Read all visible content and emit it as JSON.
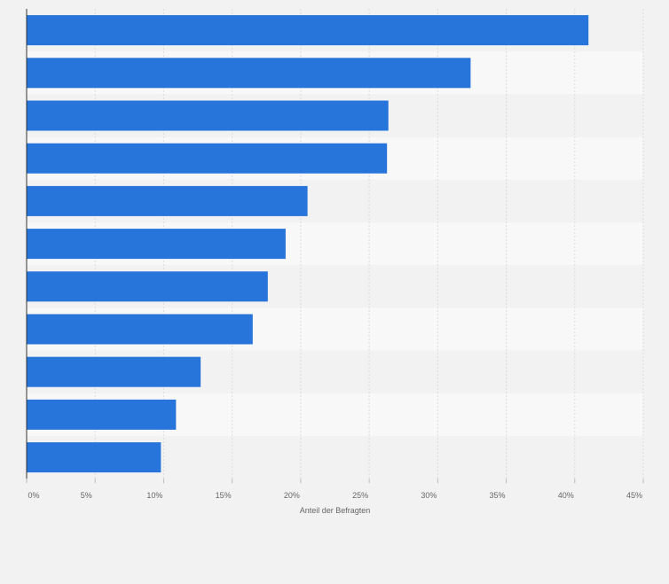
{
  "chart_data": {
    "type": "bar",
    "orientation": "horizontal",
    "title": "",
    "xlabel": "Anteil der Befragten",
    "ylabel": "",
    "categories": [
      "",
      "",
      "",
      "",
      "",
      "",
      "",
      "",
      "",
      "",
      ""
    ],
    "values": [
      41,
      32.4,
      26.4,
      26.3,
      20.5,
      18.9,
      17.6,
      16.5,
      12.7,
      10.9,
      9.8
    ],
    "xlim": [
      0,
      45
    ],
    "x_ticks": [
      0,
      5,
      10,
      15,
      20,
      25,
      30,
      35,
      40,
      45
    ],
    "x_tick_labels": [
      "0%",
      "5%",
      "10%",
      "15%",
      "20%",
      "25%",
      "30%",
      "35%",
      "40%",
      "45%"
    ],
    "grid": true,
    "bar_color": "#2775da",
    "band_colors": [
      "#f2f2f2",
      "#f8f8f8"
    ]
  }
}
